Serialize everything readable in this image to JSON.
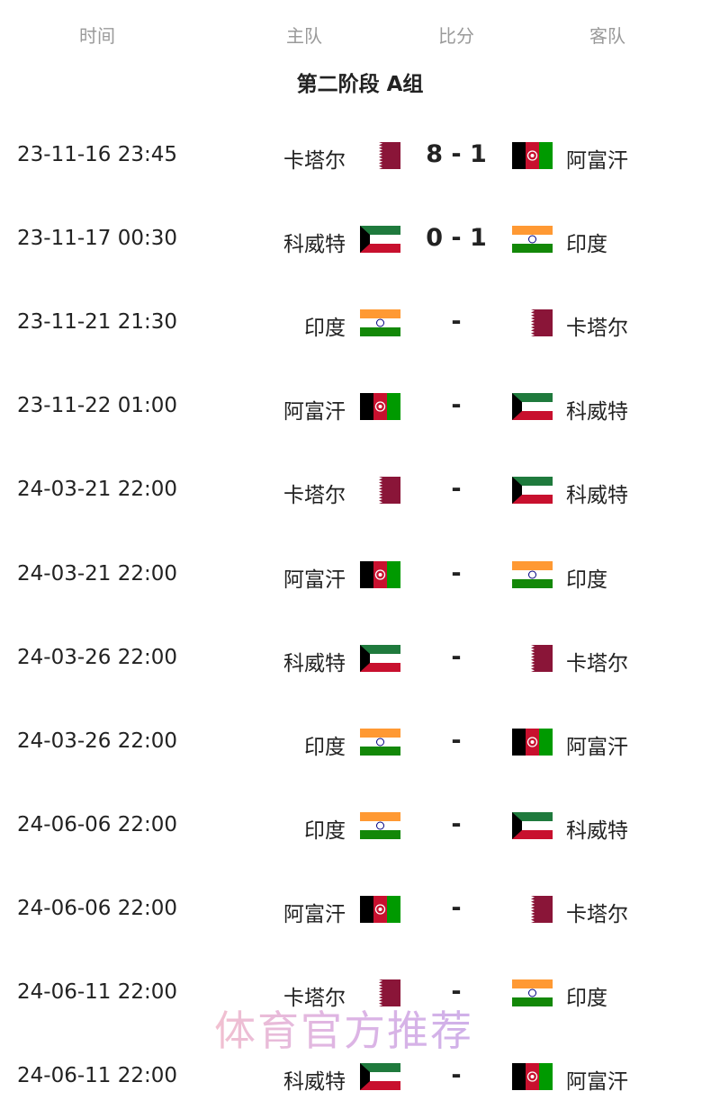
{
  "header": {
    "time": "时间",
    "home": "主队",
    "score": "比分",
    "away": "客队"
  },
  "group_title": "第二阶段 A组",
  "flags": {
    "卡塔尔": "qatar",
    "阿富汗": "afghanistan",
    "科威特": "kuwait",
    "印度": "india"
  },
  "matches": [
    {
      "time": "23-11-16 23:45",
      "home": "卡塔尔",
      "score": "8 - 1",
      "away": "阿富汗"
    },
    {
      "time": "23-11-17 00:30",
      "home": "科威特",
      "score": "0 - 1",
      "away": "印度"
    },
    {
      "time": "23-11-21 21:30",
      "home": "印度",
      "score": "-",
      "away": "卡塔尔"
    },
    {
      "time": "23-11-22 01:00",
      "home": "阿富汗",
      "score": "-",
      "away": "科威特"
    },
    {
      "time": "24-03-21 22:00",
      "home": "卡塔尔",
      "score": "-",
      "away": "科威特"
    },
    {
      "time": "24-03-21 22:00",
      "home": "阿富汗",
      "score": "-",
      "away": "印度"
    },
    {
      "time": "24-03-26 22:00",
      "home": "科威特",
      "score": "-",
      "away": "卡塔尔"
    },
    {
      "time": "24-03-26 22:00",
      "home": "印度",
      "score": "-",
      "away": "阿富汗"
    },
    {
      "time": "24-06-06 22:00",
      "home": "印度",
      "score": "-",
      "away": "科威特"
    },
    {
      "time": "24-06-06 22:00",
      "home": "阿富汗",
      "score": "-",
      "away": "卡塔尔"
    },
    {
      "time": "24-06-11 22:00",
      "home": "卡塔尔",
      "score": "-",
      "away": "印度"
    },
    {
      "time": "24-06-11 22:00",
      "home": "科威特",
      "score": "-",
      "away": "阿富汗"
    }
  ],
  "watermark": "体育官方推荐",
  "colors": {
    "qatar": "#8a1538",
    "kuwait_green": "#1f7a3d",
    "kuwait_red": "#c8102e",
    "india_saffron": "#ff9933",
    "india_green": "#138808",
    "afghan_red": "#c8102e",
    "afghan_green": "#009a00"
  }
}
